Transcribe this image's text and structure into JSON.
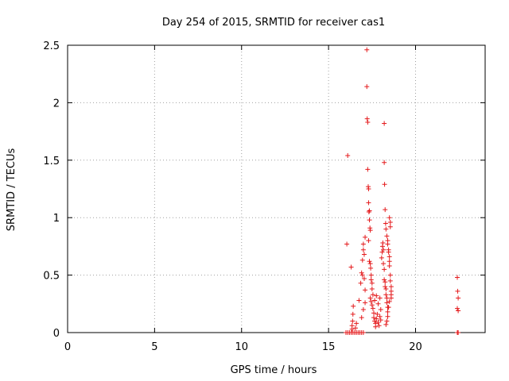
{
  "chart_data": {
    "type": "scatter",
    "title": "Day 254 of 2015, SRMTID for receiver cas1",
    "xlabel": "GPS time / hours",
    "ylabel": "SRMTID / TECUs",
    "xlim": [
      0,
      24
    ],
    "ylim": [
      0,
      2.5
    ],
    "xticks": [
      0,
      5,
      10,
      15,
      20
    ],
    "yticks": [
      0,
      0.5,
      1,
      1.5,
      2,
      2.5
    ],
    "xtick_labels": [
      "0",
      "5",
      "10",
      "15",
      "20"
    ],
    "ytick_labels": [
      "0",
      "0.5",
      "1",
      "1.5",
      "2",
      "2.5"
    ],
    "grid": true,
    "marker": "+",
    "color": "#e41a1c",
    "series": [
      {
        "name": "cas1",
        "points": [
          [
            16.0,
            0
          ],
          [
            16.1,
            0
          ],
          [
            16.2,
            0
          ],
          [
            16.3,
            0
          ],
          [
            16.4,
            0
          ],
          [
            16.5,
            0
          ],
          [
            16.6,
            0
          ],
          [
            16.7,
            0
          ],
          [
            16.8,
            0
          ],
          [
            16.9,
            0
          ],
          [
            17.0,
            0
          ],
          [
            22.4,
            0
          ],
          [
            22.45,
            0
          ],
          [
            16.05,
            0.77
          ],
          [
            16.1,
            1.54
          ],
          [
            16.3,
            0.57
          ],
          [
            16.35,
            0.03
          ],
          [
            16.35,
            0.06
          ],
          [
            16.38,
            0.1
          ],
          [
            16.4,
            0.16
          ],
          [
            16.42,
            0.23
          ],
          [
            16.55,
            0.04
          ],
          [
            16.6,
            0.08
          ],
          [
            16.75,
            0.28
          ],
          [
            16.85,
            0.43
          ],
          [
            16.9,
            0.52
          ],
          [
            16.95,
            0.5
          ],
          [
            16.95,
            0.63
          ],
          [
            17.0,
            0.72
          ],
          [
            17.0,
            0.77
          ],
          [
            17.05,
            0.68
          ],
          [
            17.05,
            0.47
          ],
          [
            17.1,
            0.83
          ],
          [
            17.1,
            0.37
          ],
          [
            16.9,
            0.13
          ],
          [
            17.0,
            0.2
          ],
          [
            17.1,
            0.26
          ],
          [
            17.2,
            2.46
          ],
          [
            17.2,
            2.14
          ],
          [
            17.22,
            1.86
          ],
          [
            17.25,
            1.83
          ],
          [
            17.25,
            1.42
          ],
          [
            17.28,
            1.27
          ],
          [
            17.3,
            1.25
          ],
          [
            17.3,
            1.13
          ],
          [
            17.32,
            1.05
          ],
          [
            17.35,
            1.06
          ],
          [
            17.35,
            0.98
          ],
          [
            17.38,
            0.91
          ],
          [
            17.4,
            0.89
          ],
          [
            17.3,
            0.8
          ],
          [
            17.35,
            0.62
          ],
          [
            17.4,
            0.6
          ],
          [
            17.42,
            0.56
          ],
          [
            17.45,
            0.5
          ],
          [
            17.45,
            0.46
          ],
          [
            17.5,
            0.43
          ],
          [
            17.5,
            0.38
          ],
          [
            17.4,
            0.3
          ],
          [
            17.45,
            0.27
          ],
          [
            17.5,
            0.24
          ],
          [
            17.55,
            0.21
          ],
          [
            17.6,
            0.17
          ],
          [
            17.6,
            0.13
          ],
          [
            17.65,
            0.1
          ],
          [
            17.7,
            0.08
          ],
          [
            17.7,
            0.05
          ],
          [
            17.75,
            0.12
          ],
          [
            17.8,
            0.16
          ],
          [
            17.85,
            0.09
          ],
          [
            17.9,
            0.06
          ],
          [
            17.95,
            0.14
          ],
          [
            18.0,
            0.2
          ],
          [
            18.0,
            0.11
          ],
          [
            17.55,
            0.33
          ],
          [
            17.65,
            0.28
          ],
          [
            17.75,
            0.32
          ],
          [
            17.85,
            0.25
          ],
          [
            17.95,
            0.3
          ],
          [
            18.05,
            0.65
          ],
          [
            18.08,
            0.7
          ],
          [
            18.1,
            0.75
          ],
          [
            18.12,
            0.78
          ],
          [
            18.15,
            0.72
          ],
          [
            18.15,
            0.6
          ],
          [
            18.2,
            0.55
          ],
          [
            18.2,
            0.46
          ],
          [
            18.25,
            0.44
          ],
          [
            18.25,
            0.4
          ],
          [
            18.3,
            0.38
          ],
          [
            18.3,
            0.33
          ],
          [
            18.35,
            0.3
          ],
          [
            18.35,
            0.26
          ],
          [
            18.4,
            0.22
          ],
          [
            18.4,
            0.18
          ],
          [
            18.2,
            1.82
          ],
          [
            18.2,
            1.48
          ],
          [
            18.22,
            1.29
          ],
          [
            18.25,
            1.07
          ],
          [
            18.28,
            0.95
          ],
          [
            18.3,
            0.9
          ],
          [
            18.35,
            0.84
          ],
          [
            18.4,
            0.8
          ],
          [
            18.4,
            0.77
          ],
          [
            18.45,
            0.72
          ],
          [
            18.45,
            0.7
          ],
          [
            18.5,
            0.66
          ],
          [
            18.5,
            0.62
          ],
          [
            18.5,
            0.58
          ],
          [
            18.5,
            1.0
          ],
          [
            18.55,
            0.96
          ],
          [
            18.55,
            0.92
          ],
          [
            18.55,
            0.5
          ],
          [
            18.55,
            0.45
          ],
          [
            18.6,
            0.4
          ],
          [
            18.6,
            0.36
          ],
          [
            18.6,
            0.33
          ],
          [
            18.6,
            0.3
          ],
          [
            18.5,
            0.27
          ],
          [
            18.45,
            0.22
          ],
          [
            18.4,
            0.14
          ],
          [
            18.35,
            0.1
          ],
          [
            18.3,
            0.07
          ],
          [
            22.4,
            0.48
          ],
          [
            22.42,
            0.36
          ],
          [
            22.45,
            0.3
          ],
          [
            22.4,
            0.21
          ],
          [
            22.45,
            0.19
          ]
        ]
      }
    ]
  }
}
